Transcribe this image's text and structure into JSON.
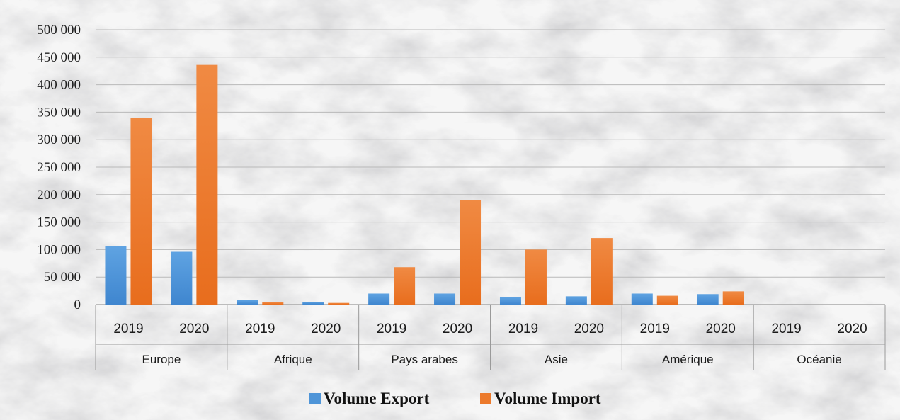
{
  "chart_data": {
    "type": "bar",
    "groups": [
      "Europe",
      "Afrique",
      "Pays arabes",
      "Asie",
      "Amérique",
      "Océanie"
    ],
    "categories": [
      "2019",
      "2020"
    ],
    "y_ticks": [
      "0",
      "50 000",
      "100 000",
      "150 000",
      "200 000",
      "250 000",
      "300 000",
      "350 000",
      "400 000",
      "450 000",
      "500 000"
    ],
    "ylim": [
      0,
      500000
    ],
    "grid": true,
    "legend_position": "bottom",
    "series": [
      {
        "name": "Volume Export",
        "color": "#4f95d8",
        "values": [
          [
            106000,
            96000
          ],
          [
            8000,
            5000
          ],
          [
            20000,
            20000
          ],
          [
            13000,
            15000
          ],
          [
            20000,
            19000
          ],
          [
            0,
            0
          ]
        ]
      },
      {
        "name": "Volume Import",
        "color": "#ec7a2c",
        "values": [
          [
            339000,
            436000
          ],
          [
            4000,
            3000
          ],
          [
            68000,
            190000
          ],
          [
            100000,
            121000
          ],
          [
            16000,
            24000
          ],
          [
            0,
            0
          ]
        ]
      }
    ]
  }
}
